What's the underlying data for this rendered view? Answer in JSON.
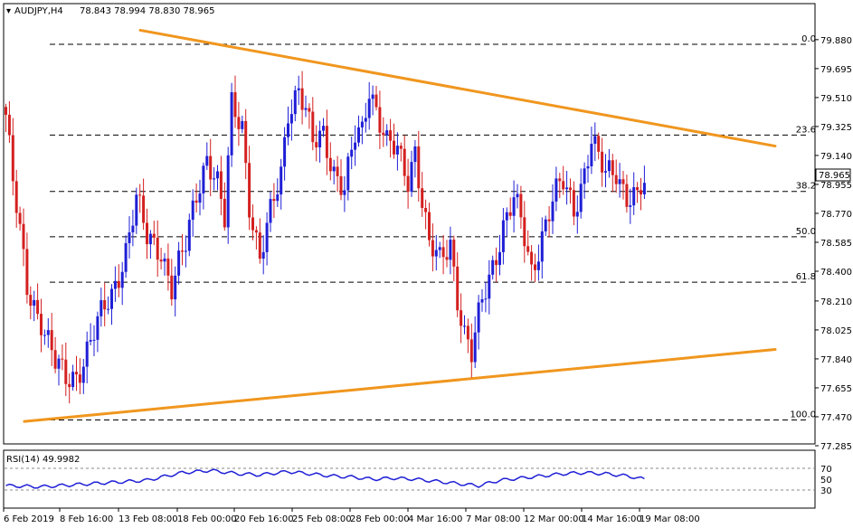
{
  "header": {
    "symbol_label": "AUDJPY,H4",
    "ohlc_text": "78.843 78.994 78.830 78.965"
  },
  "price_axis": {
    "ticks": [
      "79.880",
      "79.695",
      "79.510",
      "79.325",
      "79.140",
      "78.955",
      "78.770",
      "78.585",
      "78.400",
      "78.210",
      "78.025",
      "77.840",
      "77.655",
      "77.470",
      "77.285"
    ],
    "current_price_label": "78.965"
  },
  "rsi": {
    "header": "RSI(14) 49.9982",
    "levels": [
      "70",
      "50",
      "30"
    ]
  },
  "time_axis": {
    "labels": [
      "6 Feb 2019",
      "8 Feb 16:00",
      "13 Feb 08:00",
      "18 Feb 00:00",
      "20 Feb 16:00",
      "25 Feb 08:00",
      "28 Feb 00:00",
      "4 Mar 16:00",
      "7 Mar 08:00",
      "12 Mar 00:00",
      "14 Mar 16:00",
      "19 Mar 08:00"
    ]
  },
  "colors": {
    "bull": "#1f1fd6",
    "bear": "#d42020",
    "trendline": "#f0961e",
    "fib": "#000000",
    "rsi_line": "#1f1fd6",
    "current_price_box": "#ffffff"
  },
  "chart_data": {
    "type": "candlestick",
    "instrument": "AUDJPY",
    "timeframe": "H4",
    "y_range": [
      77.285,
      79.96
    ],
    "x_labels": [
      "6 Feb 2019",
      "8 Feb 16:00",
      "13 Feb 08:00",
      "18 Feb 00:00",
      "20 Feb 16:00",
      "25 Feb 08:00",
      "28 Feb 00:00",
      "4 Mar 16:00",
      "7 Mar 08:00",
      "12 Mar 00:00",
      "14 Mar 16:00",
      "19 Mar 08:00"
    ],
    "close_path": [
      [
        0,
        79.4
      ],
      [
        2,
        78.95
      ],
      [
        6,
        78.3
      ],
      [
        10,
        78.1
      ],
      [
        14,
        77.8
      ],
      [
        17,
        77.7
      ],
      [
        20,
        77.75
      ],
      [
        24,
        77.95
      ],
      [
        28,
        78.15
      ],
      [
        30,
        78.25
      ],
      [
        34,
        78.55
      ],
      [
        37,
        78.85
      ],
      [
        40,
        78.6
      ],
      [
        44,
        78.55
      ],
      [
        47,
        78.3
      ],
      [
        51,
        78.55
      ],
      [
        54,
        78.9
      ],
      [
        57,
        79.15
      ],
      [
        60,
        78.95
      ],
      [
        62,
        78.7
      ],
      [
        64,
        79.45
      ],
      [
        67,
        79.35
      ],
      [
        69,
        78.85
      ],
      [
        72,
        78.45
      ],
      [
        75,
        78.75
      ],
      [
        78,
        79.05
      ],
      [
        80,
        79.45
      ],
      [
        83,
        79.55
      ],
      [
        85,
        79.4
      ],
      [
        87,
        79.2
      ],
      [
        90,
        79.3
      ],
      [
        93,
        79.05
      ],
      [
        96,
        78.9
      ],
      [
        99,
        79.25
      ],
      [
        101,
        79.3
      ],
      [
        103,
        79.6
      ],
      [
        105,
        79.45
      ],
      [
        108,
        79.2
      ],
      [
        111,
        79.15
      ],
      [
        114,
        79.0
      ],
      [
        116,
        79.2
      ],
      [
        118,
        78.85
      ],
      [
        120,
        78.55
      ],
      [
        123,
        78.45
      ],
      [
        126,
        78.6
      ],
      [
        128,
        78.25
      ],
      [
        130,
        78.0
      ],
      [
        132,
        77.85
      ],
      [
        135,
        78.2
      ],
      [
        138,
        78.45
      ],
      [
        141,
        78.7
      ],
      [
        144,
        78.85
      ],
      [
        146,
        78.7
      ],
      [
        149,
        78.4
      ],
      [
        152,
        78.65
      ],
      [
        155,
        78.85
      ],
      [
        158,
        78.95
      ],
      [
        161,
        78.8
      ],
      [
        164,
        79.05
      ],
      [
        166,
        79.25
      ],
      [
        168,
        79.1
      ],
      [
        170,
        79.0
      ],
      [
        173,
        79.05
      ],
      [
        176,
        78.9
      ],
      [
        179,
        78.86
      ],
      [
        181,
        78.965
      ]
    ],
    "resistance_trendline": {
      "from": {
        "i": 20,
        "price": 79.94
      },
      "to": {
        "i": 201,
        "price": 79.2
      }
    },
    "support_trendline": {
      "from": {
        "i": 0,
        "price": 77.44
      },
      "to": {
        "i": 201,
        "price": 77.9
      }
    },
    "fibonacci": [
      {
        "label": "0.0",
        "price": 79.85
      },
      {
        "label": "23.6",
        "price": 79.27
      },
      {
        "label": "38.2",
        "price": 78.91
      },
      {
        "label": "50.0",
        "price": 78.62
      },
      {
        "label": "61.8",
        "price": 78.33
      },
      {
        "label": "100.0",
        "price": 77.45
      }
    ],
    "current_price": 78.965,
    "rsi": {
      "value": 49.9982,
      "range": [
        0,
        100
      ],
      "levels": [
        70,
        50,
        30
      ],
      "path": [
        [
          0,
          38
        ],
        [
          10,
          36
        ],
        [
          20,
          40
        ],
        [
          30,
          44
        ],
        [
          40,
          48
        ],
        [
          50,
          62
        ],
        [
          58,
          66
        ],
        [
          66,
          60
        ],
        [
          72,
          58
        ],
        [
          80,
          64
        ],
        [
          86,
          60
        ],
        [
          92,
          56
        ],
        [
          98,
          54
        ],
        [
          104,
          50
        ],
        [
          110,
          52
        ],
        [
          116,
          50
        ],
        [
          122,
          46
        ],
        [
          128,
          42
        ],
        [
          134,
          38
        ],
        [
          140,
          48
        ],
        [
          146,
          52
        ],
        [
          152,
          56
        ],
        [
          158,
          60
        ],
        [
          164,
          62
        ],
        [
          170,
          60
        ],
        [
          176,
          56
        ],
        [
          181,
          50
        ]
      ]
    }
  }
}
